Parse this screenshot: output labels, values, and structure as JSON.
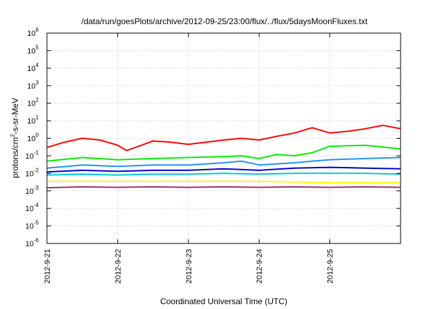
{
  "chart_data": {
    "type": "line",
    "title": "/data/run/goesPlots/archive/2012-09-25/23:00/flux/../flux/5daysMoonFluxes.txt",
    "xlabel": "Coordinated Universal Time (UTC)",
    "ylabel": {
      "base": "protons/cm",
      "sup": "2",
      "rest": "-s-sr-MeV"
    },
    "y_scale": "log",
    "ylim": [
      1e-06,
      1000000.0
    ],
    "y_ticks": [
      {
        "exp": "-6",
        "value": 1e-06
      },
      {
        "exp": "-5",
        "value": 1e-05
      },
      {
        "exp": "-4",
        "value": 0.0001
      },
      {
        "exp": "-3",
        "value": 0.001
      },
      {
        "exp": "-2",
        "value": 0.01
      },
      {
        "exp": "-1",
        "value": 0.1
      },
      {
        "exp": "0",
        "value": 1
      },
      {
        "exp": "1",
        "value": 10
      },
      {
        "exp": "2",
        "value": 100
      },
      {
        "exp": "3",
        "value": 1000
      },
      {
        "exp": "4",
        "value": 10000
      },
      {
        "exp": "5",
        "value": 100000
      },
      {
        "exp": "6",
        "value": 1000000
      }
    ],
    "y_tick_base": "10",
    "x_ticks": [
      "2012-9-21",
      "2012-9-22",
      "2012-9-23",
      "2012-9-24",
      "2012-9-25"
    ],
    "xlim": [
      "2012-09-21T00:00",
      "2012-09-26T00:00"
    ],
    "grid": true,
    "legend": "none",
    "series": [
      {
        "color": "#ff0000",
        "x": [
          "2012-09-21T00:00",
          "2012-09-21T06:00",
          "2012-09-21T12:00",
          "2012-09-21T18:00",
          "2012-09-22T00:00",
          "2012-09-22T03:00",
          "2012-09-22T06:00",
          "2012-09-22T12:00",
          "2012-09-22T18:00",
          "2012-09-23T00:00",
          "2012-09-23T06:00",
          "2012-09-23T12:00",
          "2012-09-23T18:00",
          "2012-09-24T00:00",
          "2012-09-24T06:00",
          "2012-09-24T12:00",
          "2012-09-24T18:00",
          "2012-09-25T00:00",
          "2012-09-25T06:00",
          "2012-09-25T12:00",
          "2012-09-25T18:00",
          "2012-09-26T00:00"
        ],
        "y": [
          0.3,
          0.6,
          1.0,
          0.8,
          0.4,
          0.2,
          0.3,
          0.7,
          0.6,
          0.45,
          0.6,
          0.8,
          1.0,
          0.8,
          1.3,
          2.0,
          4.0,
          2.0,
          2.5,
          3.5,
          5.5,
          3.5
        ]
      },
      {
        "color": "#00ee00",
        "x": [
          "2012-09-21T00:00",
          "2012-09-21T12:00",
          "2012-09-22T00:00",
          "2012-09-22T12:00",
          "2012-09-23T00:00",
          "2012-09-23T12:00",
          "2012-09-23T18:00",
          "2012-09-24T00:00",
          "2012-09-24T06:00",
          "2012-09-24T12:00",
          "2012-09-24T18:00",
          "2012-09-25T00:00",
          "2012-09-25T12:00",
          "2012-09-26T00:00"
        ],
        "y": [
          0.05,
          0.08,
          0.06,
          0.07,
          0.08,
          0.09,
          0.1,
          0.07,
          0.12,
          0.1,
          0.15,
          0.35,
          0.4,
          0.25
        ]
      },
      {
        "color": "#1e90ff",
        "x": [
          "2012-09-21T00:00",
          "2012-09-21T12:00",
          "2012-09-22T00:00",
          "2012-09-22T12:00",
          "2012-09-23T00:00",
          "2012-09-23T12:00",
          "2012-09-23T18:00",
          "2012-09-24T00:00",
          "2012-09-24T12:00",
          "2012-09-24T18:00",
          "2012-09-25T00:00",
          "2012-09-25T12:00",
          "2012-09-26T00:00"
        ],
        "y": [
          0.02,
          0.03,
          0.025,
          0.03,
          0.03,
          0.04,
          0.05,
          0.03,
          0.04,
          0.05,
          0.06,
          0.07,
          0.08
        ]
      },
      {
        "color": "#0000cc",
        "x": [
          "2012-09-21T00:00",
          "2012-09-21T12:00",
          "2012-09-22T00:00",
          "2012-09-22T12:00",
          "2012-09-23T00:00",
          "2012-09-23T12:00",
          "2012-09-24T00:00",
          "2012-09-24T12:00",
          "2012-09-25T00:00",
          "2012-09-25T12:00",
          "2012-09-26T00:00"
        ],
        "y": [
          0.012,
          0.015,
          0.013,
          0.015,
          0.015,
          0.018,
          0.015,
          0.02,
          0.022,
          0.02,
          0.018
        ]
      },
      {
        "color": "#00cccc",
        "x": [
          "2012-09-21T00:00",
          "2012-09-21T12:00",
          "2012-09-22T00:00",
          "2012-09-22T12:00",
          "2012-09-23T00:00",
          "2012-09-23T12:00",
          "2012-09-24T00:00",
          "2012-09-24T12:00",
          "2012-09-25T00:00",
          "2012-09-25T12:00",
          "2012-09-26T00:00"
        ],
        "y": [
          0.008,
          0.009,
          0.008,
          0.009,
          0.009,
          0.01,
          0.009,
          0.01,
          0.01,
          0.01,
          0.009
        ]
      },
      {
        "color": "#ffff00",
        "x": [
          "2012-09-21T00:00",
          "2012-09-22T00:00",
          "2012-09-23T00:00",
          "2012-09-24T00:00",
          "2012-09-25T00:00",
          "2012-09-26T00:00"
        ],
        "y": [
          0.0035,
          0.0035,
          0.0035,
          0.0035,
          0.003,
          0.003
        ]
      },
      {
        "color": "#993366",
        "x": [
          "2012-09-21T00:00",
          "2012-09-21T12:00",
          "2012-09-22T00:00",
          "2012-09-22T12:00",
          "2012-09-23T00:00",
          "2012-09-23T12:00",
          "2012-09-24T00:00",
          "2012-09-24T12:00",
          "2012-09-25T00:00",
          "2012-09-25T12:00",
          "2012-09-26T00:00"
        ],
        "y": [
          0.0015,
          0.0017,
          0.0016,
          0.0017,
          0.0016,
          0.0017,
          0.0016,
          0.0017,
          0.0016,
          0.0017,
          0.0016
        ]
      }
    ]
  }
}
